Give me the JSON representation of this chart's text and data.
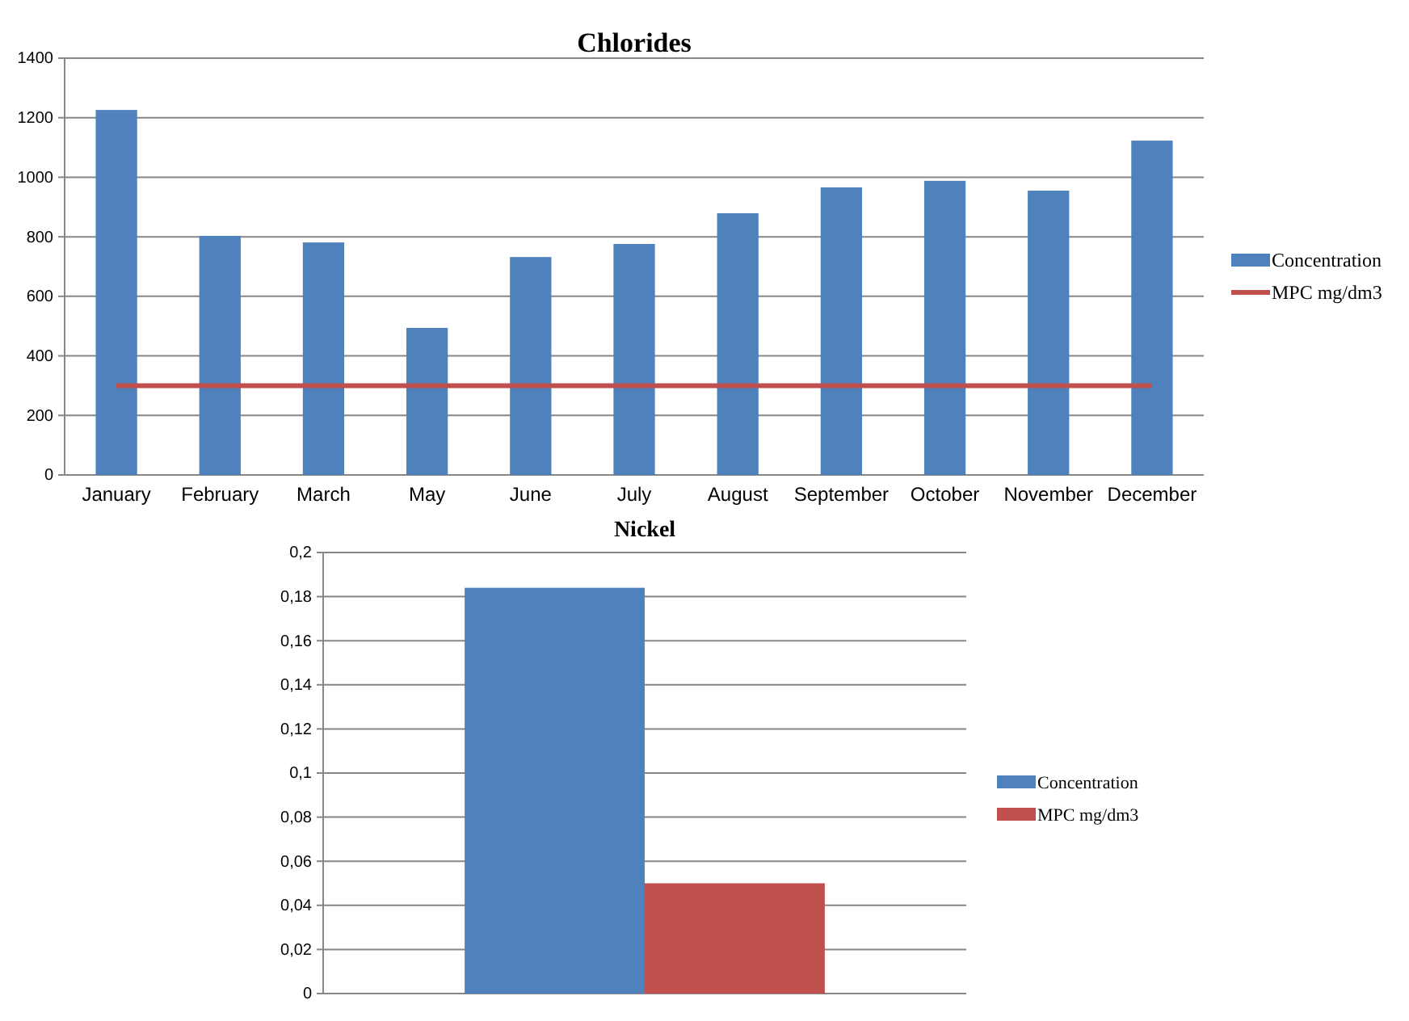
{
  "chart_data": [
    {
      "type": "bar",
      "title": "Chlorides",
      "categories": [
        "January",
        "February",
        "March",
        "May",
        "June",
        "July",
        "August",
        "September",
        "October",
        "November",
        "December"
      ],
      "series": [
        {
          "name": "Concentration",
          "color": "#4f81bd",
          "values": [
            1226,
            803,
            781,
            494,
            732,
            776,
            879,
            966,
            988,
            955,
            1123
          ]
        },
        {
          "name": "MPC mg/dm3",
          "type": "line",
          "color": "#c0504d",
          "values": [
            300,
            300,
            300,
            300,
            300,
            300,
            300,
            300,
            300,
            300,
            300
          ]
        }
      ],
      "ylim": [
        0,
        1400
      ],
      "yticks": [
        0,
        200,
        400,
        600,
        800,
        1000,
        1200,
        1400
      ],
      "grid": "y",
      "legend": "right"
    },
    {
      "type": "bar",
      "title": "Nickel",
      "categories": [
        null
      ],
      "series": [
        {
          "name": "Concentration",
          "color": "#4f81bd",
          "values": [
            0.184
          ]
        },
        {
          "name": "MPC mg/dm3",
          "color": "#c0504d",
          "values": [
            0.05
          ]
        }
      ],
      "ylim": [
        0,
        0.2
      ],
      "yticks": [
        {
          "value": 0,
          "label": "0"
        },
        {
          "value": 0.02,
          "label": "0,02"
        },
        {
          "value": 0.04,
          "label": "0,04"
        },
        {
          "value": 0.06,
          "label": "0,06"
        },
        {
          "value": 0.08,
          "label": "0,08"
        },
        {
          "value": 0.1,
          "label": "0,1"
        },
        {
          "value": 0.12,
          "label": "0,12"
        },
        {
          "value": 0.14,
          "label": "0,14"
        },
        {
          "value": 0.16,
          "label": "0,16"
        },
        {
          "value": 0.18,
          "label": "0,18"
        },
        {
          "value": 0.2,
          "label": "0,2"
        }
      ],
      "grid": "y",
      "legend": "right"
    }
  ]
}
